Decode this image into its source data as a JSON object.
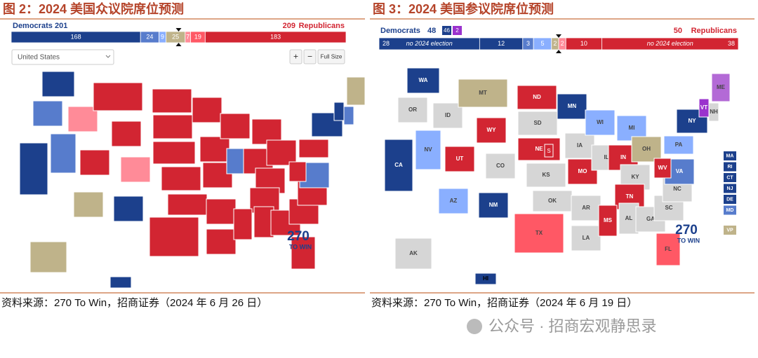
{
  "panels": [
    {
      "title": "图 2：2024 美国众议院席位预测",
      "dem_label": "Democrats",
      "dem_total": 201,
      "rep_total": 209,
      "rep_label": "Republicans",
      "segments": [
        {
          "value": 168,
          "color": "#1c408c"
        },
        {
          "value": 24,
          "color": "#577ccc"
        },
        {
          "value": 9,
          "color": "#8aafff"
        },
        {
          "value": 25,
          "color": "#bfb38a"
        },
        {
          "value": 7,
          "color": "#ff8b98"
        },
        {
          "value": 19,
          "color": "#ff5865"
        },
        {
          "value": 183,
          "color": "#d22532"
        }
      ],
      "controls": {
        "region": "United States",
        "zoom_in": "+",
        "zoom_out": "−",
        "full_size": "Full Size"
      },
      "logo": {
        "top": "270",
        "bottom": "TO WIN"
      },
      "source": "资料来源：270 To Win，招商证券（2024 年 6 月 26 日）"
    },
    {
      "title": "图 3：2024 美国参议院席位预测",
      "dem_label": "Democrats",
      "dem_total": 48,
      "dem_badges": [
        {
          "value": 46,
          "color": "#1c408c"
        },
        {
          "value": 2,
          "color": "#9a32cd"
        }
      ],
      "rep_total": 50,
      "rep_label": "Republicans",
      "segments": [
        {
          "value": 28,
          "note": "no 2024 election",
          "color": "#1c408c"
        },
        {
          "value": 12,
          "color": "#1c408c"
        },
        {
          "value": 3,
          "color": "#577ccc"
        },
        {
          "value": 5,
          "color": "#8aafff"
        },
        {
          "value": 2,
          "color": "#bfb38a"
        },
        {
          "value": 2,
          "color": "#ff8b98"
        },
        {
          "value": 10,
          "color": "#d22532"
        },
        {
          "value": 38,
          "note": "no 2024 election",
          "color": "#d22532"
        }
      ],
      "states": [
        {
          "label": "WA",
          "color": "#1c408c"
        },
        {
          "label": "OR",
          "color": "#d6d6d6"
        },
        {
          "label": "CA",
          "color": "#1c408c"
        },
        {
          "label": "NV",
          "color": "#8aafff"
        },
        {
          "label": "ID",
          "color": "#d6d6d6"
        },
        {
          "label": "MT",
          "color": "#bfb38a"
        },
        {
          "label": "WY",
          "color": "#d22532"
        },
        {
          "label": "UT",
          "color": "#d22532"
        },
        {
          "label": "AZ",
          "color": "#8aafff"
        },
        {
          "label": "NM",
          "color": "#1c408c"
        },
        {
          "label": "CO",
          "color": "#d6d6d6"
        },
        {
          "label": "ND",
          "color": "#d22532"
        },
        {
          "label": "SD",
          "color": "#d6d6d6"
        },
        {
          "label": "NE",
          "color": "#d22532"
        },
        {
          "label": "KS",
          "color": "#d6d6d6"
        },
        {
          "label": "OK",
          "color": "#d6d6d6"
        },
        {
          "label": "TX",
          "color": "#ff5865"
        },
        {
          "label": "MN",
          "color": "#1c408c"
        },
        {
          "label": "IA",
          "color": "#d6d6d6"
        },
        {
          "label": "MO",
          "color": "#d22532"
        },
        {
          "label": "AR",
          "color": "#d6d6d6"
        },
        {
          "label": "LA",
          "color": "#d6d6d6"
        },
        {
          "label": "WI",
          "color": "#8aafff"
        },
        {
          "label": "IL",
          "color": "#d6d6d6"
        },
        {
          "label": "MI",
          "color": "#8aafff"
        },
        {
          "label": "IN",
          "color": "#d22532"
        },
        {
          "label": "OH",
          "color": "#bfb38a"
        },
        {
          "label": "KY",
          "color": "#d6d6d6"
        },
        {
          "label": "TN",
          "color": "#d22532"
        },
        {
          "label": "MS",
          "color": "#d22532"
        },
        {
          "label": "AL",
          "color": "#d6d6d6"
        },
        {
          "label": "GA",
          "color": "#d6d6d6"
        },
        {
          "label": "FL",
          "color": "#ff5865"
        },
        {
          "label": "SC",
          "color": "#d6d6d6"
        },
        {
          "label": "NC",
          "color": "#d6d6d6"
        },
        {
          "label": "VA",
          "color": "#577ccc"
        },
        {
          "label": "WV",
          "color": "#d22532"
        },
        {
          "label": "PA",
          "color": "#8aafff"
        },
        {
          "label": "NY",
          "color": "#1c408c"
        },
        {
          "label": "VT",
          "color": "#9a32cd"
        },
        {
          "label": "NH",
          "color": "#d6d6d6"
        },
        {
          "label": "ME",
          "color": "#b36ad6"
        },
        {
          "label": "AK",
          "color": "#d6d6d6"
        },
        {
          "label": "HI",
          "color": "#1c408c"
        }
      ],
      "small_states": [
        {
          "label": "MA",
          "color": "#1c408c"
        },
        {
          "label": "RI",
          "color": "#1c408c"
        },
        {
          "label": "CT",
          "color": "#1c408c"
        },
        {
          "label": "NJ",
          "color": "#1c408c"
        },
        {
          "label": "DE",
          "color": "#1c408c"
        },
        {
          "label": "MD",
          "color": "#577ccc"
        }
      ],
      "vp": {
        "label": "VP",
        "color": "#bfb38a"
      },
      "ne_special": "S",
      "logo": {
        "top": "270",
        "bottom": "TO WIN"
      },
      "source": "资料来源：270 To Win，招商证券（2024 年 6 月 19 日）"
    }
  ],
  "watermark": "公众号 · 招商宏观静思录"
}
